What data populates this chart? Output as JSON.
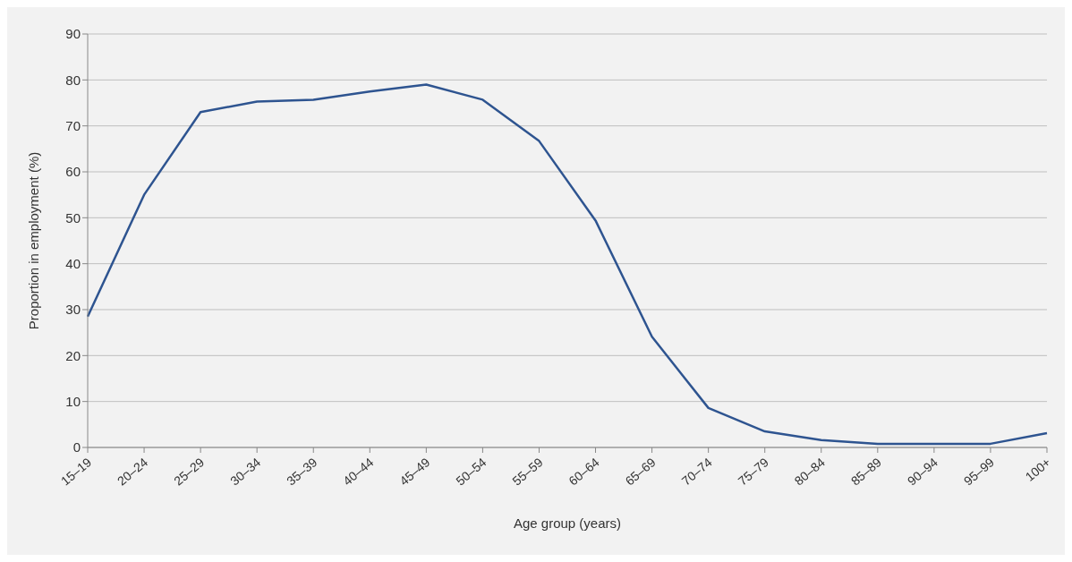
{
  "chart_data": {
    "type": "line",
    "xlabel": "Age group (years)",
    "ylabel": "Proportion in employment  (%)",
    "categories": [
      "15–19",
      "20–24",
      "25–29",
      "30–34",
      "35–39",
      "40–44",
      "45–49",
      "50–54",
      "55–59",
      "60–64",
      "65–69",
      "70–74",
      "75–79",
      "80–84",
      "85–89",
      "90–94",
      "95–99",
      "100+"
    ],
    "series": [
      {
        "color": "#2e5490",
        "values": [
          28.5,
          55,
          73,
          75.3,
          75.7,
          77.5,
          79,
          75.7,
          66.7,
          49.4,
          24.1,
          8.6,
          3.5,
          1.6,
          0.8,
          0.8,
          0.8,
          3.1
        ]
      }
    ],
    "ylim": [
      0,
      90
    ],
    "yticks": [
      0,
      10,
      20,
      30,
      40,
      50,
      60,
      70,
      80,
      90
    ],
    "grid": "y",
    "marker": "none",
    "line_style": "solid"
  }
}
